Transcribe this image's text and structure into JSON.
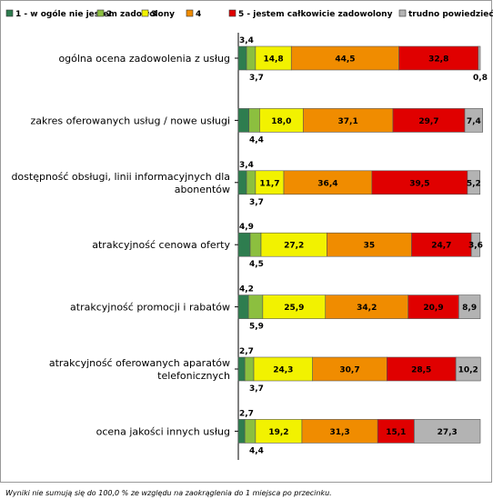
{
  "chart_data": {
    "type": "bar",
    "orientation": "horizontal",
    "stacked": true,
    "categories": [
      [
        "ogólna ocena zadowolenia z usług"
      ],
      [
        "zakres oferowanych usług / nowe usługi"
      ],
      [
        "dostępność obsługi, linii informacyjnych dla",
        "abonentów"
      ],
      [
        "atrakcyjność cenowa oferty"
      ],
      [
        "atrakcyjność promocji i rabatów"
      ],
      [
        "atrakcyjność oferowanych aparatów",
        "telefonicznych"
      ],
      [
        "ocena jakości innych usług"
      ]
    ],
    "series": [
      {
        "name": "1 - w ogóle nie jestem zadowolony",
        "color": "#2e7d4f",
        "values": [
          3.4,
          4.4,
          3.4,
          4.9,
          4.2,
          2.7,
          2.7
        ],
        "labels": [
          "3,4",
          "4,4",
          "3,4",
          "4,9",
          "4,2",
          "2,7",
          "2,7"
        ],
        "label_side": [
          "above",
          "below",
          "above",
          "above",
          "above",
          "above",
          "above"
        ]
      },
      {
        "name": "2",
        "color": "#8cbf3f",
        "values": [
          3.7,
          4.4,
          3.7,
          4.5,
          5.9,
          3.7,
          4.4
        ],
        "labels": [
          "3,7",
          "",
          "3,7",
          "4,5",
          "5,9",
          "3,7",
          "4,4"
        ],
        "label_side": [
          "below",
          "below",
          "below",
          "below",
          "below",
          "below",
          "below"
        ]
      },
      {
        "name": "3",
        "color": "#f2f200",
        "values": [
          14.8,
          18.0,
          11.7,
          27.2,
          25.9,
          24.3,
          19.2
        ],
        "labels": [
          "14,8",
          "18,0",
          "11,7",
          "27,2",
          "25,9",
          "24,3",
          "19,2"
        ]
      },
      {
        "name": "4",
        "color": "#f08c00",
        "values": [
          44.5,
          37.1,
          36.4,
          35,
          34.2,
          30.7,
          31.3
        ],
        "labels": [
          "44,5",
          "37,1",
          "36,4",
          "35",
          "34,2",
          "30,7",
          "31,3"
        ]
      },
      {
        "name": "5 - jestem całkowicie zadowolony",
        "color": "#e00000",
        "values": [
          32.8,
          29.7,
          39.5,
          24.7,
          20.9,
          28.5,
          15.1
        ],
        "labels": [
          "32,8",
          "29,7",
          "39,5",
          "24,7",
          "20,9",
          "28,5",
          "15,1"
        ]
      },
      {
        "name": "trudno powiedzieć",
        "color": "#b3b3b3",
        "values": [
          0.8,
          7.4,
          5.2,
          3.6,
          8.9,
          10.2,
          27.3
        ],
        "labels": [
          "0,8",
          "7,4",
          "5,2",
          "3,6",
          "8,9",
          "10,2",
          "27,3"
        ],
        "label_side": [
          "below",
          "inside",
          "inside",
          "inside",
          "inside",
          "inside",
          "inside"
        ]
      }
    ],
    "xlim": [
      0,
      100
    ],
    "grid": false,
    "legend": "top"
  },
  "footnote": "Wyniki nie sumują się do 100,0 % ze względu na zaokrąglenia do 1 miejsca po przecinku."
}
